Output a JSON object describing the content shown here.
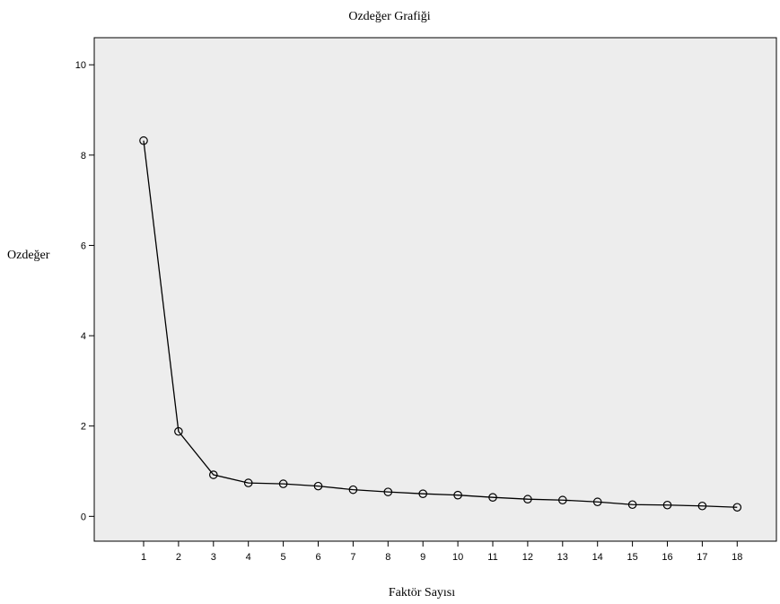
{
  "chart_data": {
    "type": "line",
    "title": "Ozdeğer Grafiği",
    "xlabel": "Faktör Sayısı",
    "ylabel": "Ozdeğer",
    "x": [
      1,
      2,
      3,
      4,
      5,
      6,
      7,
      8,
      9,
      10,
      11,
      12,
      13,
      14,
      15,
      16,
      17,
      18
    ],
    "values": [
      8.32,
      1.88,
      0.92,
      0.74,
      0.72,
      0.67,
      0.59,
      0.54,
      0.5,
      0.47,
      0.42,
      0.38,
      0.36,
      0.32,
      0.26,
      0.25,
      0.23,
      0.2
    ],
    "ylim": [
      -0.55,
      10.6
    ],
    "yticks": [
      0,
      2,
      4,
      6,
      8,
      10
    ],
    "xticks": [
      1,
      2,
      3,
      4,
      5,
      6,
      7,
      8,
      9,
      10,
      11,
      12,
      13,
      14,
      15,
      16,
      17,
      18
    ],
    "grid": false,
    "marker": "circle-open",
    "colors": {
      "plot_background": "#ededed",
      "line": "#000000",
      "frame": "#000000"
    }
  }
}
